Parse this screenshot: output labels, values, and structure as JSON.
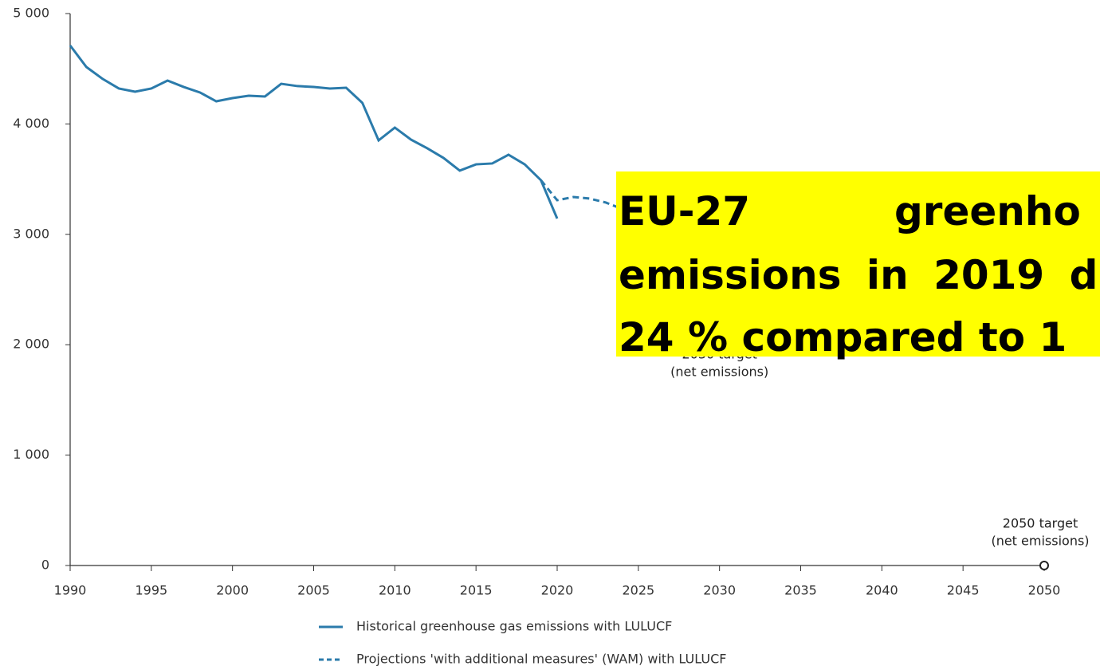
{
  "chart_data": {
    "type": "line",
    "xlim": [
      1990,
      2050
    ],
    "xticks": [
      1990,
      1995,
      2000,
      2005,
      2010,
      2015,
      2020,
      2025,
      2030,
      2035,
      2040,
      2045,
      2050
    ],
    "ylim": [
      0,
      5000
    ],
    "yticks": [
      {
        "value": 0,
        "label": "0"
      },
      {
        "value": 1000,
        "label": "1 000"
      },
      {
        "value": 2000,
        "label": "2 000"
      },
      {
        "value": 3000,
        "label": "3 000"
      },
      {
        "value": 4000,
        "label": "4 000"
      },
      {
        "value": 5000,
        "label": "5 000"
      }
    ],
    "grid": false,
    "series": [
      {
        "name": "Historical greenhouse gas emissions with LULUCF",
        "color": "#2b7bab",
        "dash": false,
        "x": [
          1990,
          1991,
          1992,
          1993,
          1994,
          1995,
          1996,
          1997,
          1998,
          1999,
          2000,
          2001,
          2002,
          2003,
          2004,
          2005,
          2006,
          2007,
          2008,
          2009,
          2010,
          2011,
          2012,
          2013,
          2014,
          2015,
          2016,
          2017,
          2018,
          2019,
          2020
        ],
        "values": [
          4711,
          4516,
          4408,
          4321,
          4292,
          4321,
          4393,
          4335,
          4285,
          4205,
          4234,
          4256,
          4249,
          4364,
          4343,
          4335,
          4321,
          4328,
          4191,
          3851,
          3967,
          3858,
          3779,
          3692,
          3577,
          3634,
          3642,
          3721,
          3634,
          3490,
          3143
        ]
      },
      {
        "name": "Projections 'with additional measures' (WAM) with LULUCF",
        "color": "#2b7bab",
        "dash": true,
        "x": [
          2019,
          2020,
          2021,
          2022,
          2023,
          2024
        ],
        "values": [
          3490,
          3309,
          3338,
          3324,
          3288,
          3230
        ]
      }
    ],
    "annotations": [
      {
        "text": "2030 target",
        "text2": "(net emissions)",
        "x": 2030
      },
      {
        "text": "2050 target",
        "text2": "(net emissions)",
        "x": 2050,
        "y": 0
      }
    ],
    "overlay": {
      "lines": [
        "EU-27",
        "greenho",
        "emissions in 2019 d",
        "24 % compared to 1"
      ]
    }
  }
}
